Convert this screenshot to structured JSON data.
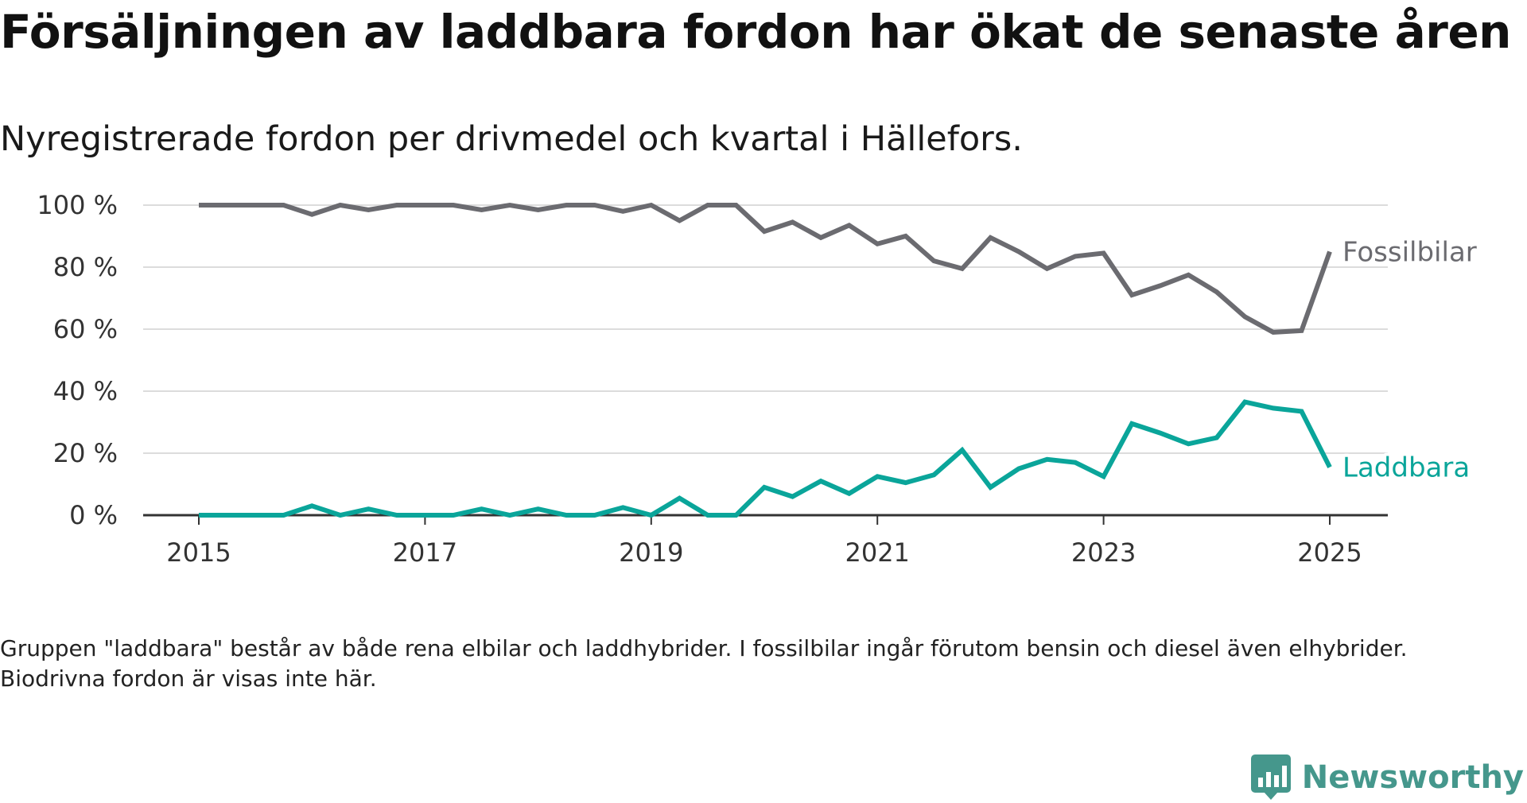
{
  "title": "Försäljningen av laddbara fordon har ökat de senaste åren",
  "subtitle": "Nyregistrerade fordon per drivmedel och kvartal i Hällefors.",
  "footnote": "Gruppen \"laddbara\" består av både rena elbilar och laddhybrider. I fossilbilar ingår förutom bensin och diesel även elhybrider. Biodrivna fordon är visas inte här.",
  "brand": {
    "name": "Newsworthy",
    "logo_icon": "bar-chart-speech-bubble-icon",
    "color": "#45978c"
  },
  "chart_data": {
    "type": "line",
    "title": "Försäljningen av laddbara fordon har ökat de senaste åren",
    "subtitle": "Nyregistrerade fordon per drivmedel och kvartal i Hällefors.",
    "x": [
      "2015-Q1",
      "2015-Q2",
      "2015-Q3",
      "2015-Q4",
      "2016-Q1",
      "2016-Q2",
      "2016-Q3",
      "2016-Q4",
      "2017-Q1",
      "2017-Q2",
      "2017-Q3",
      "2017-Q4",
      "2018-Q1",
      "2018-Q2",
      "2018-Q3",
      "2018-Q4",
      "2019-Q1",
      "2019-Q2",
      "2019-Q3",
      "2019-Q4",
      "2020-Q1",
      "2020-Q2",
      "2020-Q3",
      "2020-Q4",
      "2021-Q1",
      "2021-Q2",
      "2021-Q3",
      "2021-Q4",
      "2022-Q1",
      "2022-Q2",
      "2022-Q3",
      "2022-Q4",
      "2023-Q1",
      "2023-Q2",
      "2023-Q3",
      "2023-Q4",
      "2024-Q1",
      "2024-Q2",
      "2024-Q3",
      "2024-Q4",
      "2025-Q1"
    ],
    "series": [
      {
        "name": "Fossilbilar",
        "color": "#6b6b70",
        "values": [
          100,
          100,
          100,
          100,
          97,
          100,
          98.5,
          100,
          100,
          100,
          98.5,
          100,
          98.5,
          100,
          100,
          98,
          100,
          95,
          100,
          100,
          91.5,
          94.5,
          89.5,
          93.5,
          87.5,
          90,
          82,
          79.5,
          89.5,
          85,
          79.5,
          83.5,
          84.5,
          71,
          74,
          77.5,
          72,
          64,
          59,
          59.5,
          85
        ]
      },
      {
        "name": "Laddbara",
        "color": "#0aa59a",
        "values": [
          0,
          0,
          0,
          0,
          3,
          0,
          2,
          0,
          0,
          0,
          2,
          0,
          2,
          0,
          0,
          2.5,
          0,
          5.5,
          0,
          0,
          9,
          6,
          11,
          7,
          12.5,
          10.5,
          13,
          21,
          9,
          15,
          18,
          17,
          12.5,
          29.5,
          26.5,
          23,
          25,
          36.5,
          34.5,
          33.5,
          15.5
        ]
      }
    ],
    "x_ticks": [
      "2015",
      "2017",
      "2019",
      "2021",
      "2023",
      "2025"
    ],
    "y_ticks": [
      "0 %",
      "20 %",
      "40 %",
      "60 %",
      "80 %",
      "100 %"
    ],
    "ylim": [
      0,
      100
    ],
    "y_unit": "%",
    "grid": "horizontal",
    "legend": "direct labels at line ends"
  }
}
